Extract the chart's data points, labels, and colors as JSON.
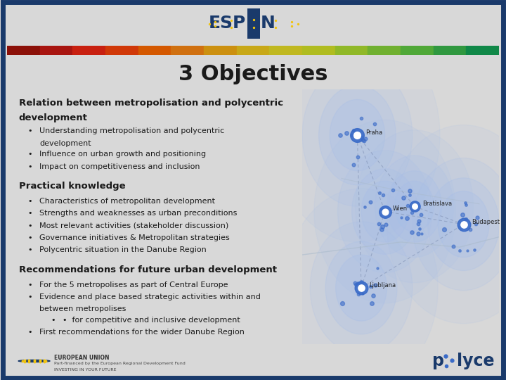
{
  "title": "3 Objectives",
  "bg_color": "#d8d8d8",
  "content_bg": "#d8d8d8",
  "header_bg": "#ffffff",
  "footer_bg": "#ffffff",
  "title_bg": "#ffffff",
  "border_color": "#1a3a6b",
  "title_color": "#1a1a1a",
  "heading1": "Relation between metropolisation and polycentric\ndevelopment",
  "bullets1": [
    "Understanding metropolisation and polycentric\ndevelopment",
    "Influence on urban growth and positioning",
    "Impact on competitiveness and inclusion"
  ],
  "heading2": "Practical knowledge",
  "bullets2": [
    "Characteristics of metropolitan development",
    "Strengths and weaknesses as urban preconditions",
    "Most relevant activities (stakeholder discussion)",
    "Governance initiatives & Metropolitan strategies",
    "Polycentric situation in the Danube Region"
  ],
  "heading3": "Recommendations for future urban development",
  "bullets3": [
    "For the 5 metropolises as part of Central Europe",
    "Evidence and place based strategic activities within and\nbetween metropolises",
    "    •  for competitive and inclusive development",
    "First recommendations for the wider Danube Region"
  ],
  "espon_color": "#1a3a6b",
  "heading_color": "#1a1a1a",
  "bullet_color": "#1a1a1a",
  "heading_fontsize": 9.5,
  "bullet_fontsize": 8.0,
  "map_bg": "#e8eef5",
  "node_color": "#3a6bc8",
  "node_bg_color": "#a8bfe8",
  "connection_color": "#8899bb",
  "city_labels": [
    "Praha",
    "Wien",
    "Bratislava",
    "Budapest",
    "Ljubljana"
  ],
  "stripe_colors_left": [
    "#8b1a10",
    "#b42010",
    "#c83808",
    "#d45010"
  ],
  "stripe_colors_mid": [
    "#d87818",
    "#d49820",
    "#c8b020",
    "#b8b820"
  ],
  "stripe_colors_right": [
    "#a0c020",
    "#80b828",
    "#60a830",
    "#409838",
    "#208840"
  ]
}
